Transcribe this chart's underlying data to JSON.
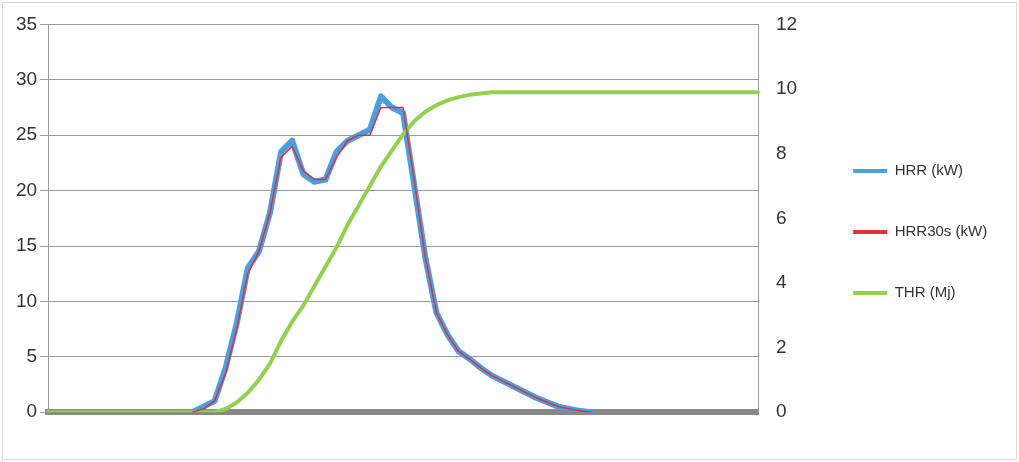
{
  "chart_data": {
    "type": "line",
    "categories": [
      null,
      null,
      null,
      null,
      null,
      null,
      null,
      null,
      null,
      null,
      null,
      null,
      null,
      null,
      null,
      null,
      null,
      null,
      null,
      null,
      null,
      null,
      null,
      null,
      null,
      null,
      null,
      null,
      null,
      null,
      null,
      null,
      null,
      null,
      null,
      null,
      null,
      null,
      null,
      null,
      null,
      null,
      null,
      null,
      null,
      null,
      null,
      null,
      null,
      null,
      null,
      null,
      null,
      null,
      null,
      null,
      null,
      null,
      null,
      null,
      null,
      null,
      null,
      null,
      null
    ],
    "series": [
      {
        "name": "HRR (kW)",
        "color": "#4a9fe0",
        "values": [
          null,
          null,
          null,
          null,
          null,
          null,
          null,
          null,
          null,
          null,
          null,
          null,
          null,
          0,
          0.5,
          1,
          4,
          8,
          13,
          14.5,
          18,
          23.5,
          24.5,
          21.5,
          20.8,
          21,
          23.5,
          24.5,
          25,
          25.5,
          28.5,
          27.5,
          27,
          20.5,
          14,
          9,
          7,
          5.5,
          4.8,
          4,
          3.3,
          2.8,
          2.3,
          1.8,
          1.3,
          0.9,
          0.5,
          0.3,
          0.1,
          0,
          null,
          null,
          null,
          null,
          null,
          null,
          null,
          null,
          null,
          null,
          null,
          null,
          null,
          null,
          null
        ]
      },
      {
        "name": "HRR30s (kW)",
        "color": "#e0303a",
        "values": [
          null,
          null,
          null,
          null,
          null,
          null,
          null,
          null,
          null,
          null,
          null,
          null,
          null,
          0,
          0.3,
          1,
          3.5,
          7.5,
          12.5,
          14.5,
          18,
          23,
          24,
          21.8,
          21,
          21,
          23,
          24.5,
          25,
          25,
          27.5,
          27.5,
          27.5,
          21,
          14,
          9,
          7,
          5.5,
          4.8,
          4,
          3.3,
          2.8,
          2.3,
          1.8,
          1.3,
          0.9,
          0.5,
          0.3,
          0.1,
          0,
          null,
          null,
          null,
          null,
          null,
          null,
          null,
          null,
          null,
          null,
          null,
          null,
          null,
          null,
          null
        ]
      },
      {
        "name": "THR (Mj)",
        "color": "#92d050",
        "axis": "y2",
        "values": [
          0,
          0,
          0,
          0,
          0,
          0,
          0,
          0,
          0,
          0,
          0,
          0,
          0,
          0,
          0,
          0,
          0.1,
          0.3,
          0.6,
          1,
          1.5,
          2.2,
          2.8,
          3.3,
          3.9,
          4.5,
          5.1,
          5.8,
          6.4,
          7,
          7.6,
          8.1,
          8.6,
          9,
          9.3,
          9.5,
          9.65,
          9.75,
          9.82,
          9.86,
          9.9,
          9.9,
          9.9,
          9.9,
          9.9,
          9.9,
          9.9,
          9.9,
          9.9,
          9.9,
          9.9,
          9.9,
          9.9,
          9.9,
          9.9,
          9.9,
          9.9,
          9.9,
          9.9,
          9.9,
          9.9,
          9.9,
          9.9,
          9.9,
          9.9
        ]
      }
    ],
    "ylim": [
      0,
      35
    ],
    "yticks": [
      0,
      5,
      10,
      15,
      20,
      25,
      30,
      35
    ],
    "y2lim": [
      0,
      12
    ],
    "y2ticks": [
      0,
      2,
      4,
      6,
      8,
      10,
      12
    ],
    "grid": "y",
    "legend": "right",
    "marker": "none",
    "line_style": "solid"
  }
}
